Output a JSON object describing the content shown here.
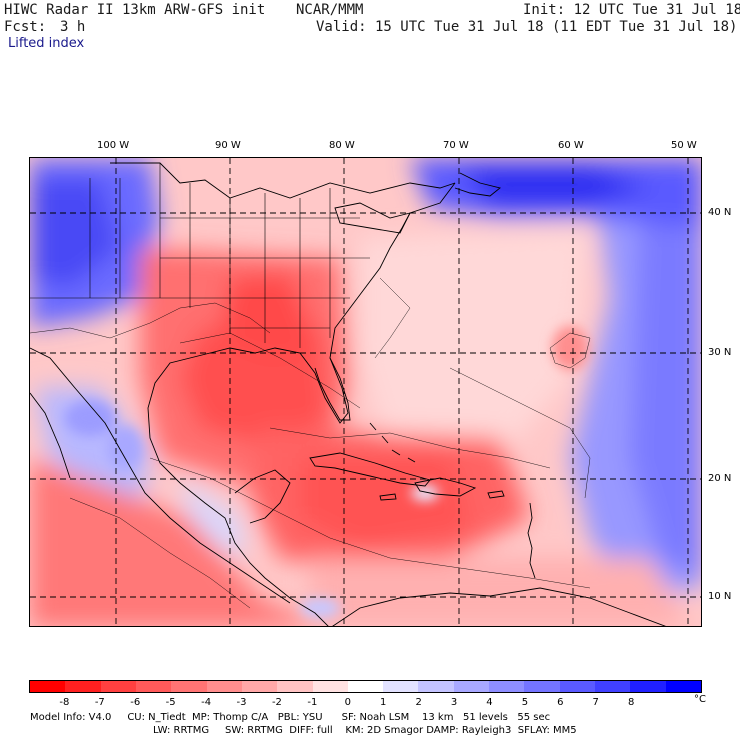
{
  "header": {
    "title": "HIWC Radar II 13km ARW-GFS init",
    "center": "NCAR/MMM",
    "init": "Init: 12 UTC Tue 31 Jul 18",
    "fcst_label": "Fcst:",
    "fcst_value": "3 h",
    "valid": "Valid: 15 UTC Tue 31 Jul 18 (11 EDT Tue 31 Jul 18)",
    "field": "Lifted index"
  },
  "axes": {
    "lon_labels": [
      "100 W",
      "90 W",
      "80 W",
      "70 W",
      "60 W",
      "50 W"
    ],
    "lat_labels": [
      "40 N",
      "30 N",
      "20 N",
      "10 N"
    ]
  },
  "colorbar": {
    "labels": [
      "-8",
      "-7",
      "-6",
      "-5",
      "-4",
      "-3",
      "-2",
      "-1",
      "0",
      "1",
      "2",
      "3",
      "4",
      "5",
      "6",
      "7",
      "8"
    ],
    "unit": "°C",
    "colors": [
      "#ff0000",
      "#ff2020",
      "#ff4040",
      "#ff5a5a",
      "#ff7474",
      "#ff8e8e",
      "#ffa8a8",
      "#ffc4c4",
      "#ffe2e2",
      "#ffffff",
      "#e2e2ff",
      "#c4c4ff",
      "#a8a8ff",
      "#8e8eff",
      "#7474ff",
      "#5a5aff",
      "#4040ff",
      "#2020ff",
      "#0000ff"
    ]
  },
  "model_info": {
    "line1": "Model Info: V4.0     CU: N_Tiedt  MP: Thomp C/A   PBL: YSU      SF: Noah LSM    13 km   51 levels   55 sec",
    "line2": "LW: RRTMG     SW: RRTMG  DIFF: full    KM: 2D Smagor DAMP: Rayleigh3  SFLAY: MM5"
  }
}
